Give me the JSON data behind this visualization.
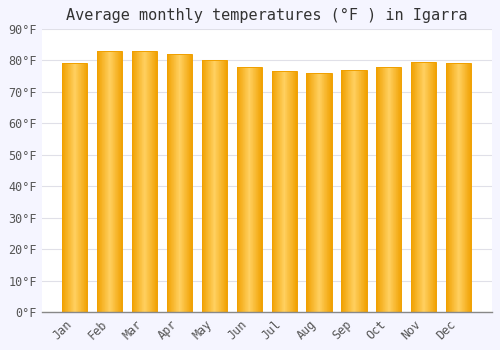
{
  "title": "Average monthly temperatures (°F ) in Igarra",
  "months": [
    "Jan",
    "Feb",
    "Mar",
    "Apr",
    "May",
    "Jun",
    "Jul",
    "Aug",
    "Sep",
    "Oct",
    "Nov",
    "Dec"
  ],
  "values": [
    79,
    83,
    83,
    82,
    80,
    78,
    76.5,
    76,
    77,
    78,
    79.5,
    79
  ],
  "ylim": [
    0,
    90
  ],
  "yticks": [
    0,
    10,
    20,
    30,
    40,
    50,
    60,
    70,
    80,
    90
  ],
  "ytick_labels": [
    "0°F",
    "10°F",
    "20°F",
    "30°F",
    "40°F",
    "50°F",
    "60°F",
    "70°F",
    "80°F",
    "90°F"
  ],
  "bar_color_center": "#FFD060",
  "bar_color_edge": "#F0A000",
  "background_color": "#F5F5FF",
  "plot_bg_color": "#FFFFFF",
  "grid_color": "#E0E0E8",
  "title_fontsize": 11,
  "tick_fontsize": 8.5,
  "title_font": "monospace",
  "bar_width": 0.72,
  "n_gradient_steps": 60
}
